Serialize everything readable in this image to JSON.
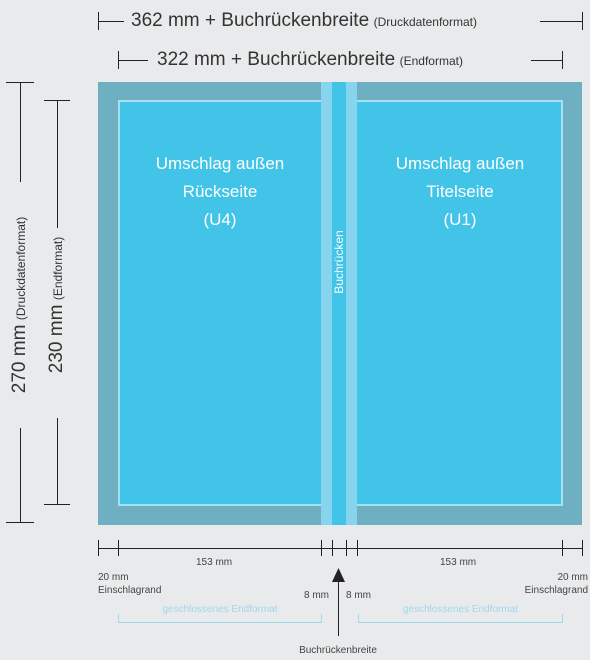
{
  "top_dims": {
    "druck_main": "362 mm + Buchrückenbreite",
    "druck_note": "(Druckdatenformat)",
    "end_main": "322 mm + Buchrückenbreite",
    "end_note": "(Endformat)"
  },
  "left_dims": {
    "druck_main": "270 mm",
    "druck_note": "(Druckdatenformat)",
    "end_main": "230 mm",
    "end_note": "(Endformat)"
  },
  "cover": {
    "back_line1": "Umschlag außen",
    "back_line2": "Rückseite",
    "back_line3": "(U4)",
    "front_line1": "Umschlag außen",
    "front_line2": "Titelseite",
    "front_line3": "(U1)",
    "spine_label": "Buchrücken"
  },
  "bottom_dims": {
    "left_width": "153 mm",
    "right_width": "153 mm",
    "left_margin_value": "20 mm",
    "left_margin_label": "Einschlagrand",
    "right_margin_value": "20 mm",
    "right_margin_label": "Einschlagrand",
    "spine_left": "8 mm",
    "spine_right": "8 mm",
    "closed_left": "geschlossenes Endformat",
    "closed_right": "geschlossenes Endformat",
    "spine_width_label": "Buchrückenbreite"
  },
  "colors": {
    "bleed": "#6eafc1",
    "panel": "#41c4e8",
    "spine_strip": "#87d4ee",
    "spine_center": "#41c4e8",
    "trim_border": "#a7e0f2",
    "closed_bracket": "#9fd8ec"
  }
}
